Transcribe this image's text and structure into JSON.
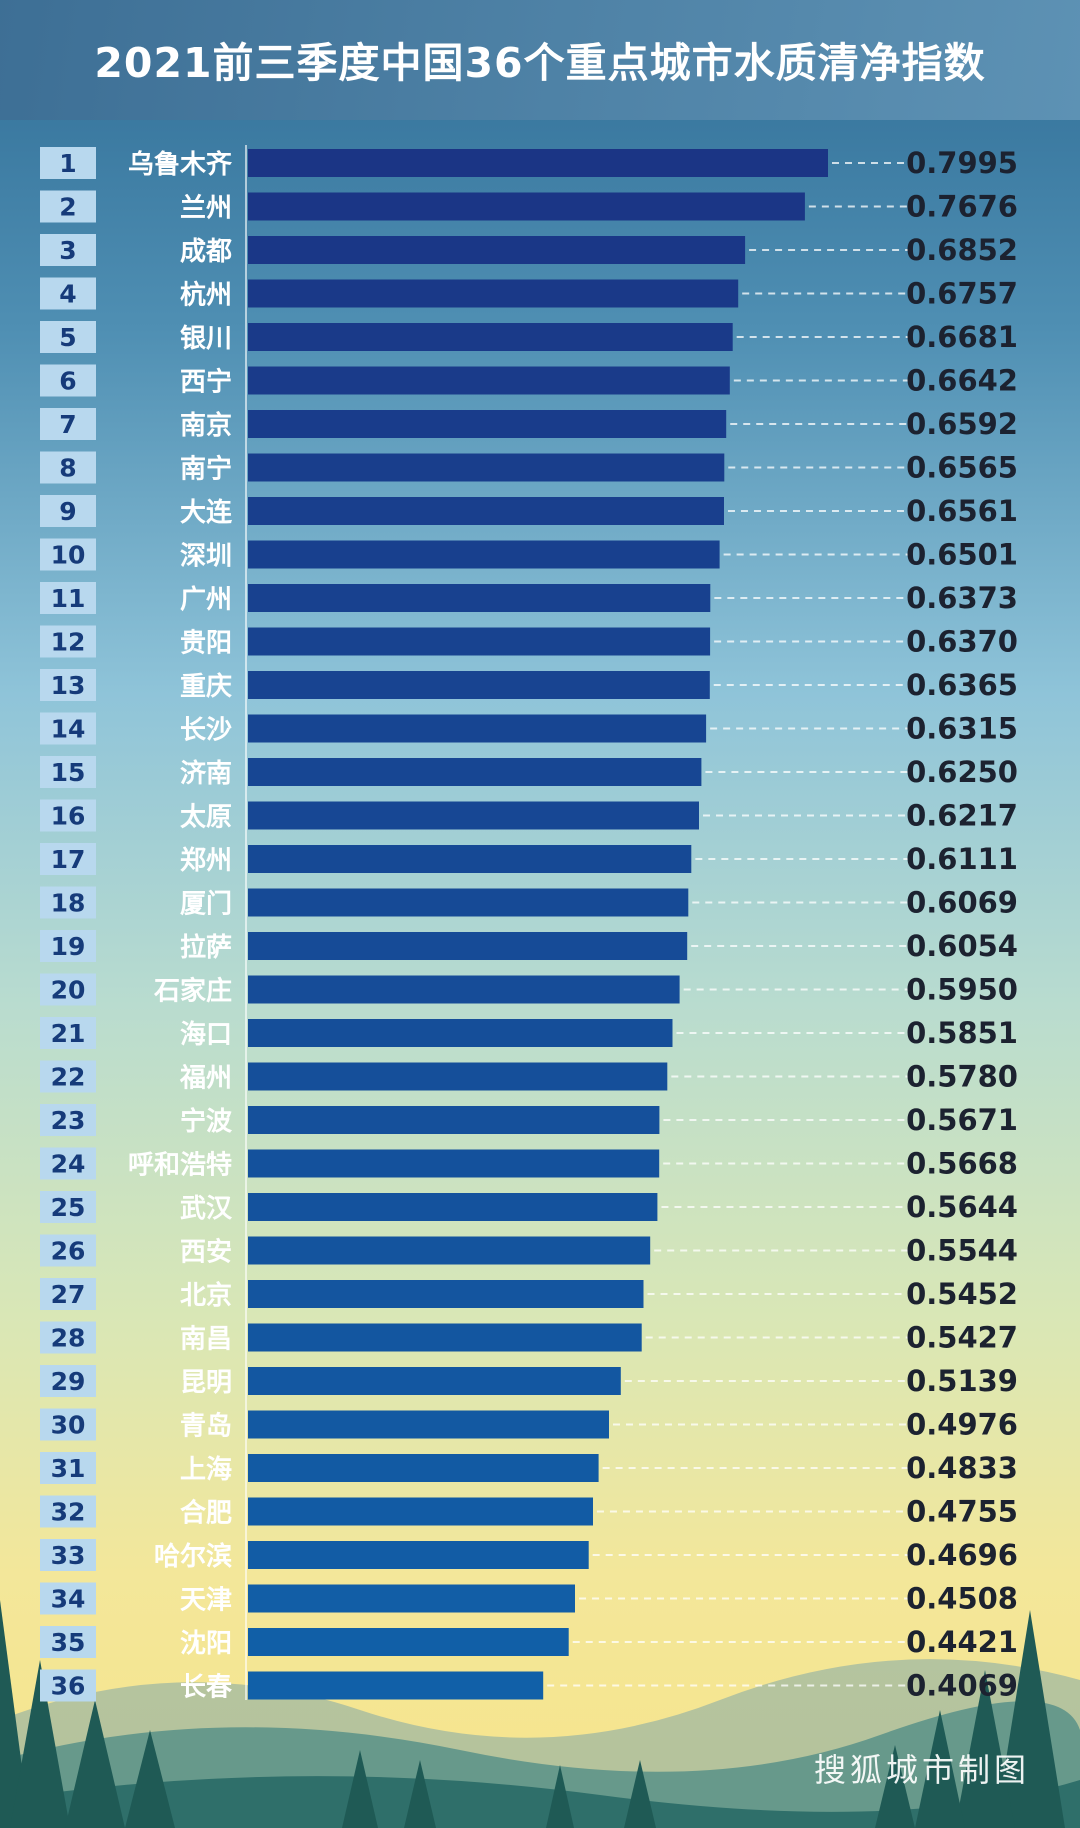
{
  "chart_data": {
    "type": "bar",
    "orientation": "horizontal",
    "title": "2021前三季度中国36个重点城市水质清净指数",
    "ranks": [
      "1",
      "2",
      "3",
      "4",
      "5",
      "6",
      "7",
      "8",
      "9",
      "10",
      "11",
      "12",
      "13",
      "14",
      "15",
      "16",
      "17",
      "18",
      "19",
      "20",
      "21",
      "22",
      "23",
      "24",
      "25",
      "26",
      "27",
      "28",
      "29",
      "30",
      "31",
      "32",
      "33",
      "34",
      "35",
      "36"
    ],
    "categories": [
      "乌鲁木齐",
      "兰州",
      "成都",
      "杭州",
      "银川",
      "西宁",
      "南京",
      "南宁",
      "大连",
      "深圳",
      "广州",
      "贵阳",
      "重庆",
      "长沙",
      "济南",
      "太原",
      "郑州",
      "厦门",
      "拉萨",
      "石家庄",
      "海口",
      "福州",
      "宁波",
      "呼和浩特",
      "武汉",
      "西安",
      "北京",
      "南昌",
      "昆明",
      "青岛",
      "上海",
      "合肥",
      "哈尔滨",
      "天津",
      "沈阳",
      "长春"
    ],
    "values": [
      0.7995,
      0.7676,
      0.6852,
      0.6757,
      0.6681,
      0.6642,
      0.6592,
      0.6565,
      0.6561,
      0.6501,
      0.6373,
      0.637,
      0.6365,
      0.6315,
      0.625,
      0.6217,
      0.6111,
      0.6069,
      0.6054,
      0.595,
      0.5851,
      0.578,
      0.5671,
      0.5668,
      0.5644,
      0.5544,
      0.5452,
      0.5427,
      0.5139,
      0.4976,
      0.4833,
      0.4755,
      0.4696,
      0.4508,
      0.4421,
      0.4069
    ],
    "value_labels": [
      "0.7995",
      "0.7676",
      "0.6852",
      "0.6757",
      "0.6681",
      "0.6642",
      "0.6592",
      "0.6565",
      "0.6561",
      "0.6501",
      "0.6373",
      "0.6370",
      "0.6365",
      "0.6315",
      "0.6250",
      "0.6217",
      "0.6111",
      "0.6069",
      "0.6054",
      "0.5950",
      "0.5851",
      "0.5780",
      "0.5671",
      "0.5668",
      "0.5644",
      "0.5544",
      "0.5452",
      "0.5427",
      "0.5139",
      "0.4976",
      "0.4833",
      "0.4755",
      "0.4696",
      "0.4508",
      "0.4421",
      "0.4069"
    ],
    "xlim": [
      0,
      0.7995
    ],
    "grid": false,
    "legend": "none"
  },
  "colors": {
    "bar_top": "#1b3585",
    "bar_bottom": "#1160a8",
    "rank_box": "#b8d8ee",
    "rank_text": "#163b7a"
  },
  "watermark": "搜狐城市制图"
}
